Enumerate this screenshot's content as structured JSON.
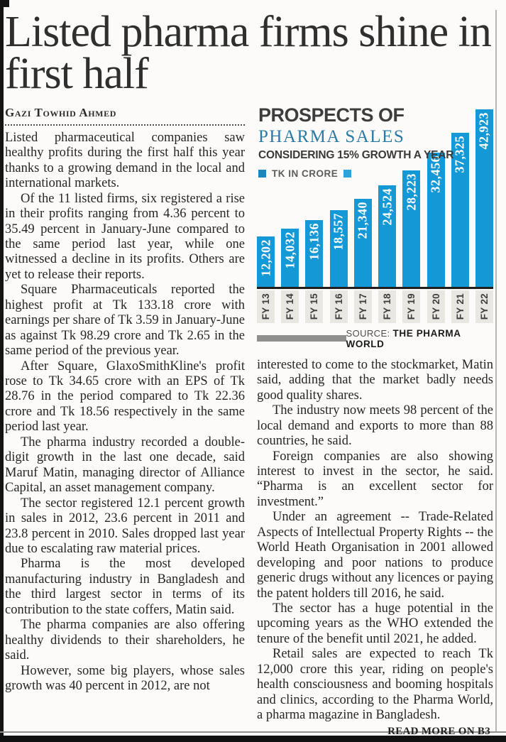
{
  "page": {
    "headline": "Listed pharma firms shine in first half",
    "byline": "Gazi Towhid Ahmed",
    "read_more": "READ MORE ON B3"
  },
  "article": {
    "left_column": [
      "Listed pharmaceutical companies saw healthy profits during the first half this year thanks to a growing demand in the local and international markets.",
      "Of the 11 listed firms, six registered a rise in their profits ranging from 4.36 percent to 35.49 percent in January-June compared to the same period last year, while one witnessed a decline in its profits. Others are yet to release their reports.",
      "Square Pharmaceuticals reported the highest profit at Tk 133.18 crore with earnings per share of Tk 3.59 in January-June as against Tk 98.29 crore and Tk 2.65 in the same period of the previous year.",
      "After Square, GlaxoSmithKline's profit rose to Tk 34.65 crore with an EPS of Tk 28.76 in the period compared to Tk 22.36 crore and Tk 18.56 respectively in the same period last year.",
      "The pharma industry recorded a double-digit growth in the last one decade, said Maruf Matin, managing director of Alliance Capital, an asset management company.",
      "The sector registered 12.1 percent growth in sales in 2012, 23.6 percent in 2011 and 23.8 percent in 2010. Sales dropped last year due to escalating raw material prices.",
      "Pharma is the most developed manufacturing industry in Bangladesh and the third largest sector in terms of its contribution to the state coffers, Matin said.",
      "The pharma companies are also offering healthy dividends to their shareholders, he said.",
      "However, some big players, whose sales growth was 40 percent in 2012, are not"
    ],
    "right_column": [
      "interested to come to the stockmarket, Matin said, adding that the market badly needs good quality shares.",
      "The industry now meets 98 percent of the local demand and exports to more than 88 countries, he said.",
      "Foreign companies are also showing interest to invest in the sector, he said. “Pharma is an excellent sector for investment.”",
      "Under an agreement -- Trade-Related Aspects of Intellectual Property Rights -- the World Heath Organisation in 2001 allowed developing and poor nations to produce generic drugs without any licences or paying the patent holders till 2016, he said.",
      "The sector has a huge potential in the upcoming years as the WHO extended the tenure of the benefit until 2021, he added.",
      "Retail sales are expected to reach Tk 12,000 crore this year, riding on people's health consciousness and booming hospitals and clinics, according to the Pharma World, a pharma magazine in Bangladesh."
    ]
  },
  "chart": {
    "title": "PROSPECTS OF",
    "subtitle": "PHARMA SALES",
    "note": "CONSIDERING 15% GROWTH A YEAR",
    "legend_label": "TK IN CRORE",
    "source_prefix": "SOURCE:",
    "source_name": "THE PHARMA WORLD",
    "colors": {
      "bar": "#1598d6",
      "subtitle_blue": "#2a7aa6",
      "legend_square_left": "#1a86c0",
      "legend_square_right": "#2aa4dc"
    }
  },
  "chart_data": {
    "type": "bar",
    "title": "PROSPECTS OF PHARMA SALES",
    "subtitle": "CONSIDERING 15% GROWTH A YEAR",
    "unit": "TK IN CRORE",
    "categories": [
      "FY 13",
      "FY 14",
      "FY 15",
      "FY 16",
      "FY 17",
      "FY 18",
      "FY 19",
      "FY 20",
      "FY 21",
      "FY 22"
    ],
    "values": [
      12202,
      14032,
      16136,
      18557,
      21340,
      24524,
      28223,
      32456,
      37325,
      42923
    ],
    "labels": [
      "12,202",
      "14,032",
      "16,136",
      "18,557",
      "21,340",
      "24,524",
      "28,223",
      "32,456",
      "37,325",
      "42,923"
    ],
    "xlabel": "",
    "ylabel": "",
    "ylim": [
      0,
      45000
    ],
    "grid": false,
    "legend_position": "top-left",
    "source": "THE PHARMA WORLD"
  }
}
